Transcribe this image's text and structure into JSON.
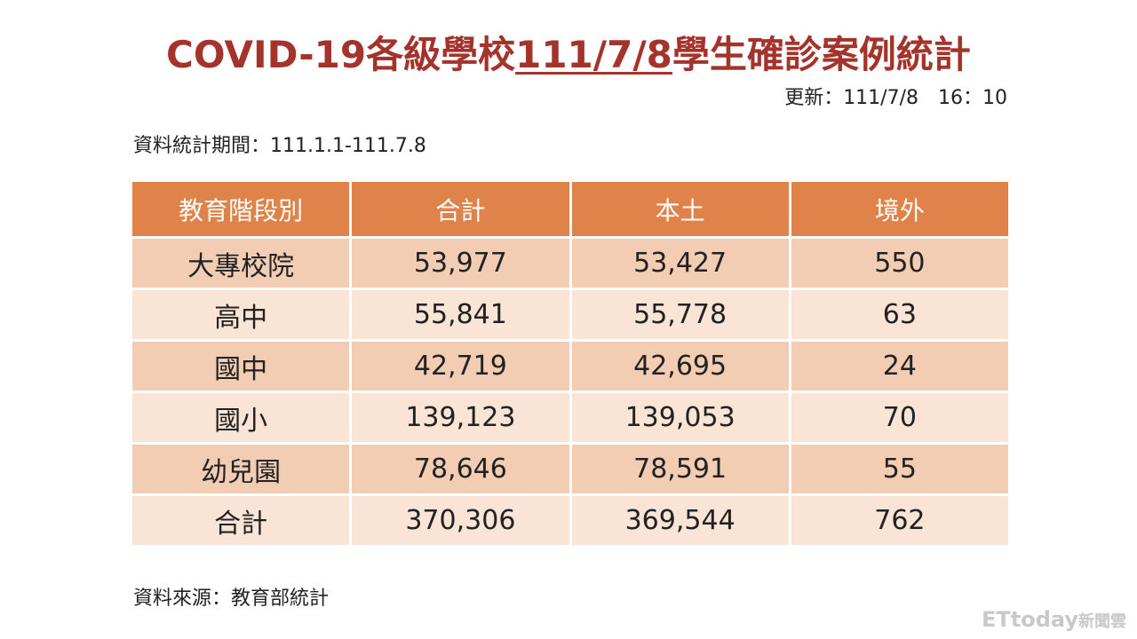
{
  "title": {
    "prefix": "COVID-19各級學校",
    "date": "111/7/8",
    "suffix": "學生確診案例統計"
  },
  "updated": "更新：111/7/8　16：10",
  "period": "資料統計期間：111.1.1-111.7.8",
  "table": {
    "headers": [
      "教育階段別",
      "合計",
      "本土",
      "境外"
    ],
    "rows": [
      [
        "大專校院",
        "53,977",
        "53,427",
        "550"
      ],
      [
        "高中",
        "55,841",
        "55,778",
        "63"
      ],
      [
        "國中",
        "42,719",
        "42,695",
        "24"
      ],
      [
        "國小",
        "139,123",
        "139,053",
        "70"
      ],
      [
        "幼兒園",
        "78,646",
        "78,591",
        "55"
      ],
      [
        "合計",
        "370,306",
        "369,544",
        "762"
      ]
    ]
  },
  "source": "資料來源：教育部統計",
  "logo": {
    "main": "ETtoday",
    "sub": "新聞雲"
  },
  "colors": {
    "title": "#a3332b",
    "header_bg": "#e0834a",
    "row_dark": "#f2cdb3",
    "row_light": "#f9e4d6"
  }
}
